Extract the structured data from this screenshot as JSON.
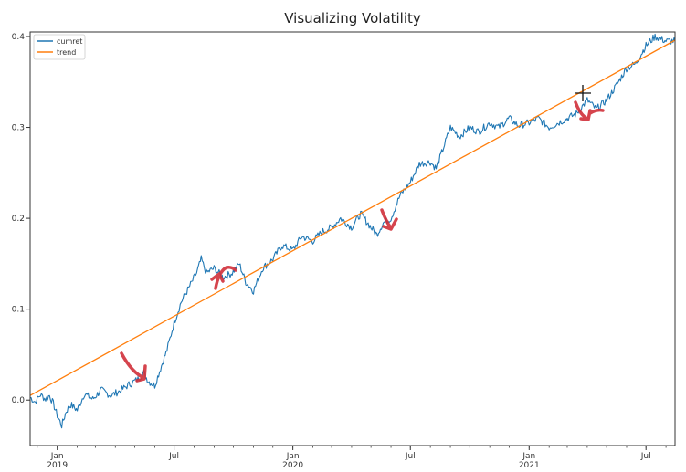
{
  "chart_data": {
    "type": "line",
    "title": "Visualizing Volatility",
    "xlabel": "",
    "ylabel": "",
    "xlim": [
      "2018-11-20",
      "2021-08-15"
    ],
    "ylim": [
      -0.05,
      0.405
    ],
    "grid": false,
    "legend_position": "top-left",
    "x_ticks": [
      {
        "date": "2019-01-01",
        "label": "Jan",
        "sublabel": "2019"
      },
      {
        "date": "2019-07-01",
        "label": "Jul",
        "sublabel": ""
      },
      {
        "date": "2020-01-01",
        "label": "Jan",
        "sublabel": "2020"
      },
      {
        "date": "2020-07-01",
        "label": "Jul",
        "sublabel": ""
      },
      {
        "date": "2021-01-01",
        "label": "Jan",
        "sublabel": "2021"
      },
      {
        "date": "2021-07-01",
        "label": "Jul",
        "sublabel": ""
      }
    ],
    "y_ticks": [
      0.0,
      0.1,
      0.2,
      0.3,
      0.4
    ],
    "y_tick_labels": [
      "0.0",
      "0.1",
      "0.2",
      "0.3",
      "0.4"
    ],
    "series": [
      {
        "name": "cumret",
        "color": "#1f77b4",
        "x": [
          "2018-11-20",
          "2018-11-28",
          "2018-12-06",
          "2018-12-14",
          "2018-12-20",
          "2018-12-26",
          "2019-01-01",
          "2019-01-08",
          "2019-01-15",
          "2019-01-22",
          "2019-02-01",
          "2019-02-12",
          "2019-02-25",
          "2019-03-10",
          "2019-03-25",
          "2019-04-08",
          "2019-04-22",
          "2019-05-06",
          "2019-05-15",
          "2019-05-22",
          "2019-06-01",
          "2019-06-10",
          "2019-06-20",
          "2019-07-01",
          "2019-07-12",
          "2019-07-25",
          "2019-08-05",
          "2019-08-12",
          "2019-08-20",
          "2019-09-01",
          "2019-09-15",
          "2019-09-29",
          "2019-10-10",
          "2019-10-20",
          "2019-11-01",
          "2019-11-15",
          "2019-12-01",
          "2019-12-15",
          "2020-01-01",
          "2020-01-15",
          "2020-02-01",
          "2020-02-15",
          "2020-03-01",
          "2020-03-15",
          "2020-04-01",
          "2020-04-15",
          "2020-05-01",
          "2020-05-10",
          "2020-05-20",
          "2020-06-01",
          "2020-06-15",
          "2020-07-01",
          "2020-07-15",
          "2020-08-01",
          "2020-08-10",
          "2020-08-20",
          "2020-09-01",
          "2020-09-15",
          "2020-10-01",
          "2020-10-15",
          "2020-11-01",
          "2020-11-15",
          "2020-12-01",
          "2020-12-15",
          "2021-01-01",
          "2021-01-15",
          "2021-02-01",
          "2021-02-15",
          "2021-03-01",
          "2021-03-15",
          "2021-04-01",
          "2021-04-15",
          "2021-05-01",
          "2021-05-15",
          "2021-06-01",
          "2021-06-15",
          "2021-07-01",
          "2021-07-15",
          "2021-08-01",
          "2021-08-15"
        ],
        "values": [
          0.003,
          -0.002,
          0.006,
          0.001,
          0.005,
          -0.004,
          -0.017,
          -0.028,
          -0.012,
          -0.005,
          -0.011,
          0.007,
          0.001,
          0.011,
          0.005,
          0.01,
          0.017,
          0.023,
          0.03,
          0.021,
          0.016,
          0.035,
          0.055,
          0.085,
          0.108,
          0.125,
          0.14,
          0.155,
          0.14,
          0.145,
          0.135,
          0.14,
          0.15,
          0.13,
          0.12,
          0.145,
          0.155,
          0.17,
          0.165,
          0.18,
          0.175,
          0.185,
          0.19,
          0.2,
          0.19,
          0.205,
          0.19,
          0.182,
          0.195,
          0.2,
          0.225,
          0.24,
          0.26,
          0.262,
          0.255,
          0.275,
          0.3,
          0.29,
          0.3,
          0.295,
          0.305,
          0.3,
          0.31,
          0.302,
          0.305,
          0.31,
          0.3,
          0.305,
          0.31,
          0.315,
          0.33,
          0.32,
          0.33,
          0.345,
          0.365,
          0.37,
          0.39,
          0.4,
          0.395,
          0.395
        ]
      },
      {
        "name": "trend",
        "color": "#ff7f0e",
        "x": [
          "2018-11-20",
          "2021-08-15"
        ],
        "values": [
          0.005,
          0.396
        ]
      }
    ]
  }
}
